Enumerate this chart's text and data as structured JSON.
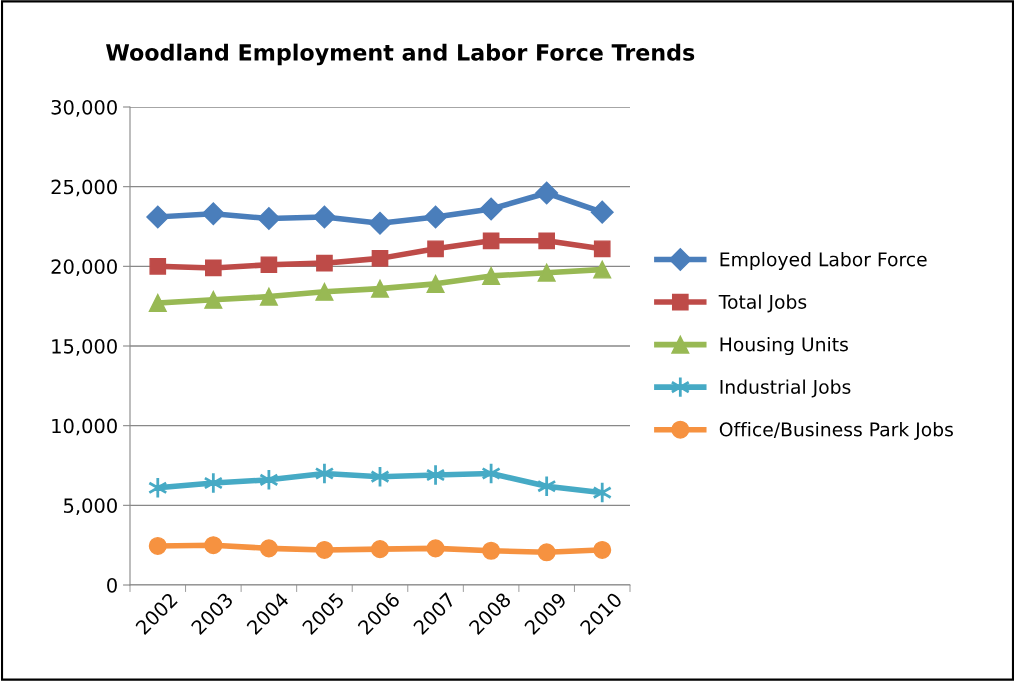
{
  "chart_data": {
    "type": "line",
    "title": "Woodland Employment and Labor Force Trends",
    "categories": [
      "2002",
      "2003",
      "2004",
      "2005",
      "2006",
      "2007",
      "2008",
      "2009",
      "2010"
    ],
    "series": [
      {
        "name": "Employed Labor Force",
        "color": "#4a7ebb",
        "marker": "diamond",
        "values": [
          23100,
          23300,
          23000,
          23100,
          22700,
          23100,
          23600,
          24600,
          23400
        ]
      },
      {
        "name": "Total Jobs",
        "color": "#be4b48",
        "marker": "square",
        "values": [
          20000,
          19900,
          20100,
          20200,
          20500,
          21100,
          21600,
          21600,
          21100
        ]
      },
      {
        "name": "Housing Units",
        "color": "#98b954",
        "marker": "triangle",
        "values": [
          17700,
          17900,
          18100,
          18400,
          18600,
          18900,
          19400,
          19600,
          19800
        ]
      },
      {
        "name": "Industrial Jobs",
        "color": "#46aac5",
        "marker": "cross",
        "values": [
          6100,
          6400,
          6600,
          7000,
          6800,
          6900,
          7000,
          6200,
          5800
        ]
      },
      {
        "name": "Office/Business Park Jobs",
        "color": "#f69240",
        "marker": "circle",
        "values": [
          2450,
          2500,
          2300,
          2200,
          2250,
          2300,
          2150,
          2050,
          2200
        ]
      }
    ],
    "ylim": [
      0,
      30000
    ],
    "yticks": [
      {
        "value": 0,
        "label": "0"
      },
      {
        "value": 5000,
        "label": "5,000"
      },
      {
        "value": 10000,
        "label": "10,000"
      },
      {
        "value": 15000,
        "label": "15,000"
      },
      {
        "value": 20000,
        "label": "20,000"
      },
      {
        "value": 25000,
        "label": "25,000"
      },
      {
        "value": 30000,
        "label": "30,000"
      }
    ],
    "grid": "y",
    "legend": "right",
    "line_style": "solid"
  }
}
